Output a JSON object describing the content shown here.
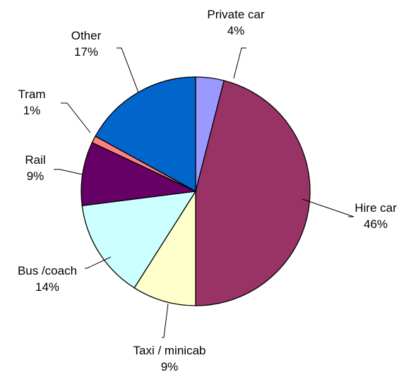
{
  "chart_data": {
    "type": "pie",
    "title": "",
    "slices": [
      {
        "name": "Private car",
        "value": 4,
        "label": "4%",
        "color": "#9999FF"
      },
      {
        "name": "Hire car",
        "value": 46,
        "label": "46%",
        "color": "#993366"
      },
      {
        "name": "Taxi / minicab",
        "value": 9,
        "label": "9%",
        "color": "#FFFFCC"
      },
      {
        "name": "Bus /coach",
        "value": 14,
        "label": "14%",
        "color": "#CCFFFF"
      },
      {
        "name": "Rail",
        "value": 9,
        "label": "9%",
        "color": "#660066"
      },
      {
        "name": "Tram",
        "value": 1,
        "label": "1%",
        "color": "#FF8080"
      },
      {
        "name": "Other",
        "value": 17,
        "label": "17%",
        "color": "#0066CC"
      }
    ],
    "legend": "none",
    "data_labels": "category name and percentage, outside with leader lines"
  }
}
